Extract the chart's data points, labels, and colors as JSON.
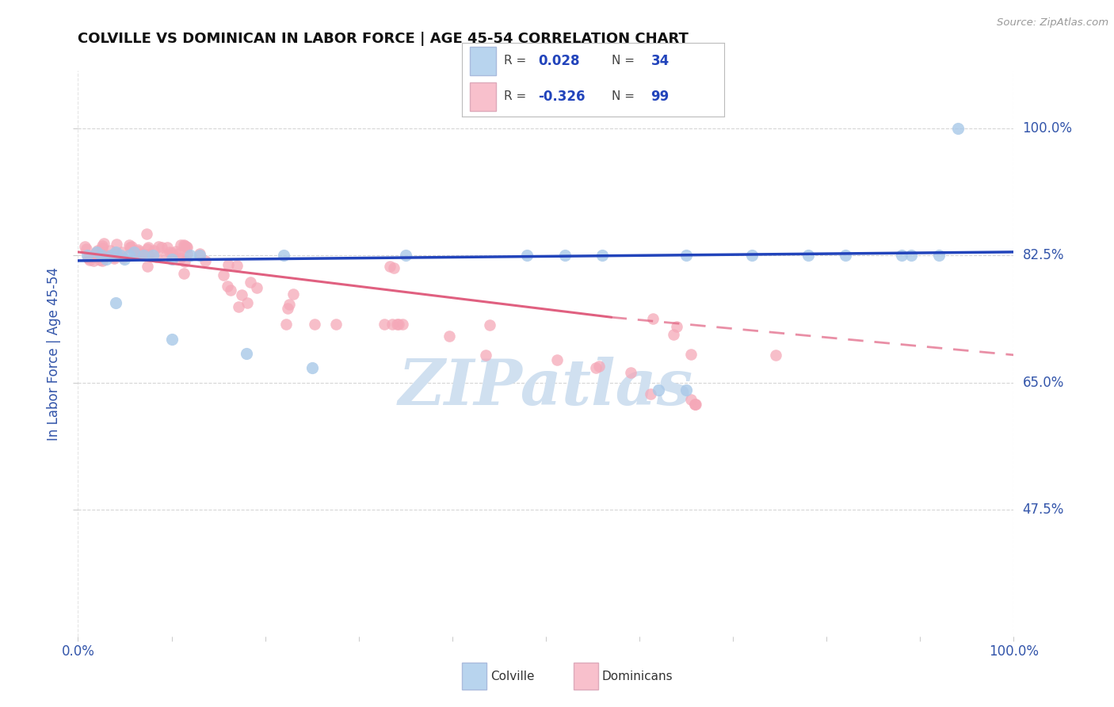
{
  "title": "COLVILLE VS DOMINICAN IN LABOR FORCE | AGE 45-54 CORRELATION CHART",
  "source": "Source: ZipAtlas.com",
  "ylabel": "In Labor Force | Age 45-54",
  "xlim": [
    0.0,
    1.0
  ],
  "ylim": [
    0.3,
    1.08
  ],
  "yticks": [
    0.475,
    0.65,
    0.825,
    1.0
  ],
  "ytick_labels": [
    "47.5%",
    "65.0%",
    "82.5%",
    "100.0%"
  ],
  "xtick_labels": [
    "0.0%",
    "",
    "",
    "",
    "",
    "",
    "",
    "",
    "",
    "",
    "100.0%"
  ],
  "colville_color": "#a8c8e8",
  "dominican_color": "#f5a8b8",
  "trend_blue": "#2244bb",
  "trend_pink": "#e06080",
  "watermark": "ZIPatlas",
  "watermark_color": "#d0e0f0",
  "background_color": "#ffffff",
  "grid_color": "#cccccc",
  "title_color": "#111111",
  "axis_label_color": "#3355aa",
  "tick_color": "#3355aa",
  "legend_box_color_colville": "#b8d4ee",
  "legend_box_color_dominican": "#f8c0cc",
  "right_label_82": "82.5%",
  "right_label_65": "65.0%",
  "right_label_47": "47.5%",
  "right_label_100": "100.0%"
}
